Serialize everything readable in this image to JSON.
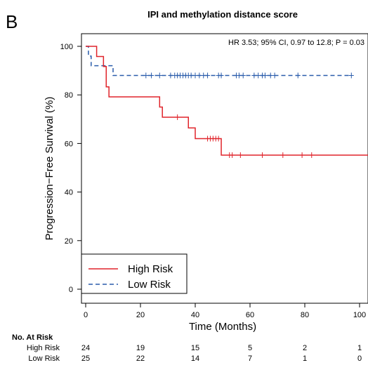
{
  "panel_label": "B",
  "risk_table": {
    "title": "No. At Risk",
    "times": [
      0,
      20,
      40,
      60,
      80,
      100
    ],
    "rows": [
      {
        "label": "High Risk",
        "counts": [
          "24",
          "19",
          "15",
          "5",
          "2",
          "1"
        ]
      },
      {
        "label": "Low Risk",
        "counts": [
          "25",
          "22",
          "14",
          "7",
          "1",
          "0"
        ]
      }
    ]
  },
  "chart_data": {
    "type": "line",
    "subtype": "kaplan-meier",
    "title": "IPI and methylation distance score",
    "annotation": "HR 3.53; 95% CI, 0.97 to 12.8; P = 0.03",
    "xlabel": "Time (Months)",
    "ylabel": "Progression−Free Survival (%)",
    "xlim": [
      0,
      108
    ],
    "ylim": [
      0,
      104
    ],
    "xticks": [
      0,
      20,
      40,
      60,
      80,
      100
    ],
    "yticks": [
      0,
      20,
      40,
      60,
      80,
      100
    ],
    "grid": false,
    "legend_position": "bottom-left",
    "series": [
      {
        "name": "High Risk",
        "color": "#e0242b",
        "dash": "solid",
        "steps": [
          [
            0,
            100
          ],
          [
            4,
            95.8
          ],
          [
            6.5,
            91.7
          ],
          [
            7.5,
            83.3
          ],
          [
            8.5,
            79.2
          ],
          [
            27,
            75
          ],
          [
            28,
            70.8
          ],
          [
            37.5,
            66.4
          ],
          [
            40,
            62
          ],
          [
            49.5,
            55.2
          ],
          [
            107,
            55.2
          ]
        ],
        "censored": [
          [
            33.5,
            70.8
          ],
          [
            44.5,
            62
          ],
          [
            45.5,
            62
          ],
          [
            46.5,
            62
          ],
          [
            47.5,
            62
          ],
          [
            48.5,
            62
          ],
          [
            52.5,
            55.2
          ],
          [
            53.5,
            55.2
          ],
          [
            56.5,
            55.2
          ],
          [
            64.5,
            55.2
          ],
          [
            72,
            55.2
          ],
          [
            79,
            55.2
          ],
          [
            82.5,
            55.2
          ],
          [
            107,
            55.2
          ]
        ]
      },
      {
        "name": "Low Risk",
        "color": "#2a5cab",
        "dash": "dashed",
        "steps": [
          [
            0,
            100
          ],
          [
            1,
            96
          ],
          [
            2,
            92
          ],
          [
            6,
            92
          ],
          [
            10,
            88
          ],
          [
            97,
            88
          ]
        ],
        "censored": [
          [
            22,
            88
          ],
          [
            24,
            88
          ],
          [
            27,
            88
          ],
          [
            31,
            88
          ],
          [
            32.5,
            88
          ],
          [
            33.5,
            88
          ],
          [
            34.5,
            88
          ],
          [
            35.5,
            88
          ],
          [
            36.5,
            88
          ],
          [
            37.5,
            88
          ],
          [
            38.5,
            88
          ],
          [
            40,
            88
          ],
          [
            41.5,
            88
          ],
          [
            43,
            88
          ],
          [
            44.5,
            88
          ],
          [
            48.5,
            88
          ],
          [
            49.5,
            88
          ],
          [
            55,
            88
          ],
          [
            56,
            88
          ],
          [
            57.5,
            88
          ],
          [
            61.5,
            88
          ],
          [
            63,
            88
          ],
          [
            64.5,
            88
          ],
          [
            65.5,
            88
          ],
          [
            67.5,
            88
          ],
          [
            69,
            88
          ],
          [
            77.5,
            88
          ],
          [
            97,
            88
          ]
        ]
      }
    ]
  }
}
